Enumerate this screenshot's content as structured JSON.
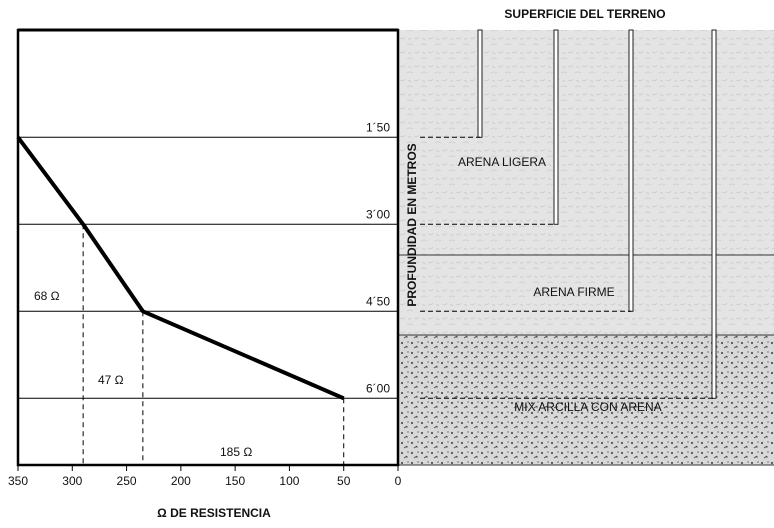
{
  "chart_data": {
    "type": "line",
    "x_label": "Ω DE RESISTENCIA",
    "y_label": "PROFUNDIDAD EN METROS",
    "x": [
      350,
      290,
      235,
      50
    ],
    "values": [
      1.5,
      3.0,
      4.5,
      6.0
    ],
    "color": "#000000",
    "xlim": [
      350,
      0
    ],
    "xticks": [
      350,
      300,
      250,
      200,
      150,
      100,
      50,
      0
    ],
    "ylim": [
      -0.35,
      7.15
    ],
    "y_inverted": true,
    "yticks": [
      {
        "value": 1.5,
        "label": "1´50"
      },
      {
        "value": 3.0,
        "label": "3´00"
      },
      {
        "value": 4.5,
        "label": "4´50"
      },
      {
        "value": 6.0,
        "label": "6´00"
      }
    ],
    "annotations": [
      "SUPERFICIE DEL TERRENO",
      "ARENA LIGERA",
      "ARENA FIRME",
      "MIX ARCILLA CON ARENA",
      "68 Ω",
      "47 Ω",
      "185 Ω"
    ]
  }
}
